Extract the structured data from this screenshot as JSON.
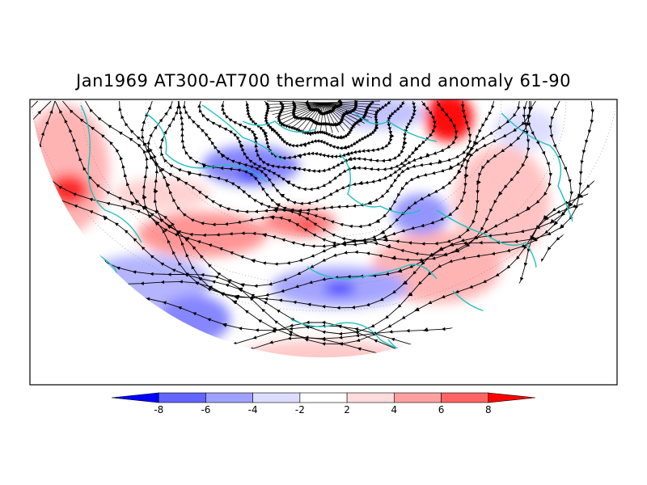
{
  "title": "Jan1969 AT300-AT700 thermal wind and anomaly 61-90",
  "colorbar": {
    "ticks": [
      "-8",
      "-6",
      "-4",
      "-2",
      "2",
      "4",
      "6",
      "8"
    ],
    "colors": [
      "#0000ff",
      "#6464ff",
      "#a0a0ff",
      "#dcdcff",
      "#ffffff",
      "#ffdcdc",
      "#ffa0a0",
      "#ff6464",
      "#ff0000"
    ]
  },
  "map": {
    "coastline_color": "#20c0c0",
    "streamline_color": "#000000",
    "frame_color": "#000000"
  }
}
